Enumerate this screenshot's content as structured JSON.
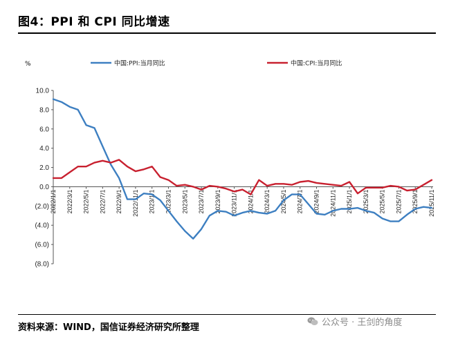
{
  "title": "图4：PPI 和 CPI 同比增速",
  "source": "资料来源：WIND，国信证券经济研究所整理",
  "watermark": {
    "icon": "wechat-icon",
    "text": "公众号 · 王剑的角度"
  },
  "chart_data": {
    "type": "line",
    "unit_label": "%",
    "ylim": [
      -8,
      10
    ],
    "y_ticks": [
      10,
      8,
      6,
      4,
      2,
      0,
      -2,
      -4,
      -6,
      -8
    ],
    "y_tick_labels": [
      "10.0",
      "8.0",
      "6.0",
      "4.0",
      "2.0",
      "0.0",
      "(2.0)",
      "(4.0)",
      "(6.0)",
      "(8.0)"
    ],
    "x_tick_labels": [
      "2022/1/1",
      "2022/3/1",
      "2022/5/1",
      "2022/7/1",
      "2022/9/1",
      "2022/11/1",
      "2023/1/1",
      "2023/3/1",
      "2023/5/1",
      "2023/7/1",
      "2023/9/1",
      "2023/11/1",
      "2024/1/1",
      "2024/3/1",
      "2024/5/1",
      "2024/7/1",
      "2024/9/1",
      "2024/11/1",
      "2025/1/1",
      "2025/3/1",
      "2025/5/1",
      "2025/7/1",
      "2025/9/1",
      "2025/11/1"
    ],
    "x": [
      "2022-01",
      "2022-02",
      "2022-03",
      "2022-04",
      "2022-05",
      "2022-06",
      "2022-07",
      "2022-08",
      "2022-09",
      "2022-10",
      "2022-11",
      "2022-12",
      "2023-01",
      "2023-02",
      "2023-03",
      "2023-04",
      "2023-05",
      "2023-06",
      "2023-07",
      "2023-08",
      "2023-09",
      "2023-10",
      "2023-11",
      "2023-12",
      "2024-01",
      "2024-02",
      "2024-03",
      "2024-04",
      "2024-05",
      "2024-06",
      "2024-07",
      "2024-08",
      "2024-09",
      "2024-10",
      "2024-11",
      "2024-12",
      "2025-01",
      "2025-02",
      "2025-03",
      "2025-04",
      "2025-05",
      "2025-06",
      "2025-07",
      "2025-08",
      "2025-09",
      "2025-10",
      "2025-11"
    ],
    "series": [
      {
        "name": "中国:PPI:当月同比",
        "color": "#3d7fc1",
        "values": [
          9.1,
          8.8,
          8.3,
          8.0,
          6.4,
          6.1,
          4.2,
          2.3,
          0.9,
          -1.3,
          -1.3,
          -0.7,
          -0.8,
          -1.4,
          -2.5,
          -3.6,
          -4.6,
          -5.4,
          -4.4,
          -3.0,
          -2.5,
          -2.6,
          -3.0,
          -2.7,
          -2.5,
          -2.7,
          -2.8,
          -2.5,
          -1.4,
          -0.8,
          -0.8,
          -1.8,
          -2.8,
          -2.9,
          -2.5,
          -2.3,
          -2.3,
          -2.2,
          -2.5,
          -2.7,
          -3.3,
          -3.6,
          -3.6,
          -2.9,
          -2.3,
          -2.1,
          -2.2
        ]
      },
      {
        "name": "中国:CPI:当月同比",
        "color": "#c8202f",
        "values": [
          0.9,
          0.9,
          1.5,
          2.1,
          2.1,
          2.5,
          2.7,
          2.5,
          2.8,
          2.1,
          1.6,
          1.8,
          2.1,
          1.0,
          0.7,
          0.1,
          0.2,
          0.0,
          -0.3,
          0.1,
          0.0,
          -0.2,
          -0.5,
          -0.3,
          -0.8,
          0.7,
          0.1,
          0.3,
          0.3,
          0.2,
          0.5,
          0.6,
          0.4,
          0.3,
          0.2,
          0.1,
          0.5,
          -0.7,
          -0.1,
          -0.1,
          -0.1,
          0.1,
          0.0,
          -0.4,
          -0.3,
          0.2,
          0.7
        ]
      }
    ],
    "legend_position": "top",
    "grid": false
  }
}
